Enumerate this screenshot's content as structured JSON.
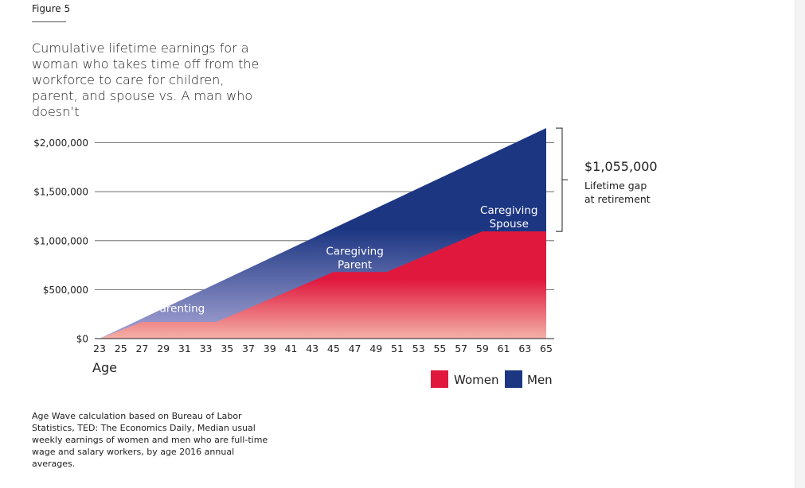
{
  "figure_label": "Figure 5",
  "title": "Cumulative lifetime earnings for a woman who takes time off from the workforce to care for children, parent, and spouse vs. A man who doesn’t",
  "source_note": "Age Wave calculation based on Bureau of Labor Statistics, TED: The Economics Daily, Median usual weekly earnings of women and men who are full-time wage and salary workers, by age 2016 annual averages.",
  "colors": {
    "women": "#e0183e",
    "women_light": "#f4b1a6",
    "men": "#1c3682",
    "men_light": "#a8a6d6",
    "grid": "#555555"
  },
  "chart_data": {
    "type": "area",
    "title": "Cumulative lifetime earnings for a woman who takes time off from the workforce to care for children, parent, and spouse vs. A man who doesn’t",
    "xlabel": "Age",
    "ylabel": "",
    "x": [
      23,
      25,
      27,
      29,
      31,
      33,
      35,
      37,
      39,
      41,
      43,
      45,
      47,
      49,
      51,
      53,
      55,
      57,
      59,
      61,
      63,
      65
    ],
    "xlim": [
      23,
      65
    ],
    "ylim": [
      0,
      2150000
    ],
    "yticks": [
      {
        "value": 0,
        "label": "$0"
      },
      {
        "value": 500000,
        "label": "$500,000"
      },
      {
        "value": 1000000,
        "label": "$1,000,000"
      },
      {
        "value": 1500000,
        "label": "$1,500,000"
      },
      {
        "value": 2000000,
        "label": "$2,000,000"
      }
    ],
    "grid": true,
    "series": [
      {
        "name": "Men",
        "color": "#1c3682",
        "points": [
          [
            23,
            0
          ],
          [
            65,
            2150000
          ]
        ]
      },
      {
        "name": "Women",
        "color": "#e0183e",
        "points": [
          [
            23,
            0
          ],
          [
            27,
            170000
          ],
          [
            34,
            170000
          ],
          [
            45,
            680000
          ],
          [
            50,
            680000
          ],
          [
            59,
            1095000
          ],
          [
            65,
            1095000
          ]
        ]
      }
    ],
    "legend": {
      "placement": "bottom-right",
      "items": [
        "Women",
        "Men"
      ]
    },
    "annotations": [
      {
        "text": "Parenting",
        "x": 30.5,
        "y": 270000
      },
      {
        "text": "Caregiving\nParent",
        "x": 47,
        "y": 855000
      },
      {
        "text": "Caregiving\nSpouse",
        "x": 61.5,
        "y": 1275000
      }
    ],
    "gap": {
      "value_label": "$1,055,000",
      "caption": "Lifetime gap\nat retirement",
      "from": 1095000,
      "to": 2150000
    }
  }
}
